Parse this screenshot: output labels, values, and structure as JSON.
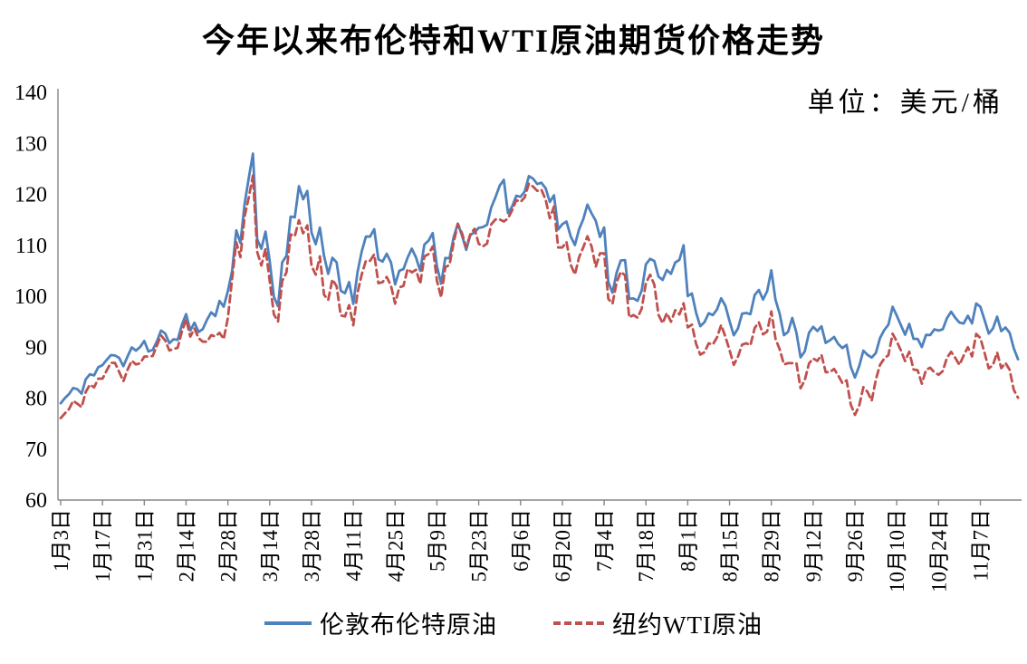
{
  "chart_data": {
    "type": "line",
    "title": "今年以来布伦特和WTI原油期货价格走势",
    "unit_label": "单位：美元/桶",
    "xlabel": "",
    "ylabel": "",
    "ylim": [
      60,
      140
    ],
    "y_ticks": [
      60,
      70,
      80,
      90,
      100,
      110,
      120,
      130,
      140
    ],
    "grid": false,
    "legend_position": "bottom",
    "axis_color": "#878787",
    "text_color": "#000000",
    "x_tick_interval": 10,
    "x_tick_labels": [
      "1月3日",
      "1月17日",
      "1月31日",
      "2月14日",
      "2月28日",
      "3月14日",
      "3月28日",
      "4月11日",
      "4月25日",
      "5月9日",
      "5月23日",
      "6月6日",
      "6月20日",
      "7月4日",
      "7月18日",
      "8月1日",
      "8月15日",
      "8月29日",
      "9月12日",
      "9月26日",
      "10月10日",
      "10月24日",
      "11月7日"
    ],
    "series": [
      {
        "name": "伦敦布伦特原油",
        "color": "#4F81BD",
        "line_style": "solid",
        "values": [
          78.98,
          80.0,
          80.8,
          81.99,
          81.75,
          80.87,
          83.72,
          84.67,
          84.47,
          86.06,
          86.48,
          87.51,
          88.44,
          88.38,
          87.89,
          86.27,
          88.2,
          89.96,
          89.34,
          90.03,
          91.21,
          89.16,
          89.47,
          91.11,
          93.27,
          92.69,
          90.78,
          91.55,
          91.41,
          94.44,
          96.48,
          93.28,
          94.81,
          92.97,
          93.54,
          95.39,
          96.84,
          96.1,
          99.08,
          97.93,
          100.99,
          104.97,
          112.93,
          110.46,
          118.11,
          123.21,
          127.98,
          111.14,
          109.33,
          112.67,
          106.9,
          99.91,
          98.02,
          106.64,
          107.93,
          115.62,
          115.48,
          121.6,
          119.03,
          120.65,
          112.48,
          110.23,
          113.45,
          107.91,
          104.39,
          107.53,
          106.64,
          101.07,
          100.58,
          102.78,
          98.48,
          104.64,
          108.78,
          111.7,
          111.7,
          113.16,
          107.25,
          106.8,
          108.33,
          106.65,
          102.32,
          104.99,
          105.32,
          107.59,
          109.34,
          107.58,
          104.97,
          110.14,
          110.9,
          112.39,
          105.94,
          102.46,
          107.51,
          107.45,
          111.55,
          114.24,
          111.93,
          109.11,
          112.04,
          112.55,
          113.42,
          113.56,
          114.03,
          117.4,
          119.43,
          121.67,
          122.84,
          116.29,
          117.61,
          119.72,
          119.51,
          120.57,
          123.58,
          123.07,
          122.01,
          122.27,
          121.17,
          118.51,
          119.81,
          113.12,
          114.13,
          114.65,
          111.74,
          110.05,
          113.12,
          115.09,
          117.98,
          116.26,
          114.81,
          111.63,
          113.5,
          102.77,
          100.69,
          104.65,
          107.02,
          107.1,
          99.49,
          99.57,
          99.1,
          101.16,
          106.27,
          107.35,
          106.92,
          103.86,
          103.2,
          105.15,
          104.4,
          106.62,
          107.14,
          110.01,
          100.03,
          100.54,
          96.78,
          94.12,
          94.92,
          96.65,
          96.31,
          97.4,
          99.6,
          98.15,
          95.1,
          92.34,
          93.65,
          96.59,
          96.72,
          96.48,
          100.22,
          101.22,
          99.34,
          100.99,
          105.09,
          99.31,
          96.49,
          92.36,
          93.02,
          95.74,
          92.83,
          88.0,
          89.15,
          92.84,
          94.0,
          93.17,
          94.1,
          90.84,
          91.35,
          92.0,
          90.62,
          89.83,
          90.46,
          86.15,
          84.06,
          86.27,
          89.32,
          88.49,
          87.96,
          88.86,
          91.8,
          93.37,
          94.42,
          97.92,
          96.19,
          94.29,
          92.45,
          94.57,
          91.63,
          91.62,
          90.03,
          92.41,
          92.38,
          93.5,
          93.26,
          93.52,
          95.69,
          96.96,
          95.77,
          94.83,
          94.65,
          96.16,
          94.67,
          98.57,
          97.92,
          95.36,
          92.65,
          93.67,
          95.99,
          93.14,
          93.86,
          92.86,
          89.78,
          87.62
        ]
      },
      {
        "name": "纽约WTI原油",
        "color": "#C0504D",
        "line_style": "dashed",
        "values": [
          76.08,
          76.99,
          77.85,
          79.46,
          78.9,
          78.23,
          81.22,
          82.64,
          82.12,
          83.82,
          83.82,
          85.43,
          86.96,
          86.9,
          85.14,
          83.31,
          85.6,
          87.35,
          86.61,
          86.82,
          88.15,
          88.2,
          88.26,
          90.27,
          92.31,
          91.32,
          89.36,
          89.66,
          89.88,
          93.1,
          95.46,
          92.07,
          93.66,
          91.76,
          91.07,
          91.07,
          92.35,
          92.1,
          92.81,
          91.59,
          95.72,
          103.41,
          110.6,
          107.67,
          115.68,
          119.4,
          123.7,
          108.7,
          106.02,
          109.33,
          103.01,
          96.44,
          95.04,
          102.98,
          104.7,
          112.12,
          111.76,
          114.93,
          112.34,
          113.9,
          105.96,
          104.24,
          107.82,
          100.28,
          99.27,
          103.28,
          101.96,
          96.23,
          96.03,
          98.26,
          94.29,
          100.6,
          104.25,
          106.95,
          106.95,
          108.21,
          102.56,
          102.75,
          103.79,
          102.07,
          98.54,
          101.7,
          102.02,
          105.36,
          104.69,
          105.17,
          102.41,
          107.81,
          108.26,
          109.77,
          103.09,
          99.76,
          105.71,
          106.13,
          110.49,
          114.2,
          112.4,
          109.59,
          112.21,
          113.23,
          110.29,
          109.77,
          110.33,
          114.09,
          115.07,
          115.07,
          114.67,
          115.26,
          116.87,
          118.87,
          118.5,
          119.41,
          122.11,
          121.51,
          120.67,
          120.93,
          118.93,
          115.31,
          117.59,
          109.56,
          109.56,
          110.65,
          106.19,
          104.27,
          107.62,
          109.57,
          111.76,
          109.78,
          105.76,
          108.43,
          108.43,
          99.5,
          98.53,
          102.73,
          104.79,
          104.09,
          95.84,
          96.3,
          95.78,
          97.59,
          102.6,
          104.22,
          102.26,
          96.35,
          94.7,
          96.7,
          94.98,
          97.26,
          96.42,
          98.62,
          93.89,
          94.42,
          90.66,
          88.54,
          89.01,
          90.76,
          90.5,
          91.93,
          94.34,
          92.09,
          89.41,
          86.53,
          88.11,
          90.5,
          90.77,
          90.36,
          93.74,
          94.89,
          92.52,
          93.06,
          97.01,
          91.64,
          89.55,
          86.61,
          86.87,
          86.87,
          86.88,
          81.94,
          83.54,
          86.79,
          87.78,
          87.31,
          88.48,
          85.1,
          85.11,
          85.73,
          84.45,
          82.94,
          83.49,
          78.74,
          76.71,
          78.5,
          82.15,
          81.23,
          79.49,
          83.63,
          86.52,
          87.76,
          88.45,
          92.64,
          91.13,
          89.35,
          87.27,
          89.11,
          85.61,
          85.46,
          82.82,
          85.55,
          85.98,
          85.05,
          84.58,
          85.32,
          87.91,
          89.08,
          87.9,
          86.53,
          88.37,
          90.0,
          88.17,
          92.61,
          91.79,
          88.91,
          85.83,
          86.47,
          88.96,
          85.87,
          86.92,
          85.59,
          81.64,
          80.08
        ]
      }
    ]
  }
}
